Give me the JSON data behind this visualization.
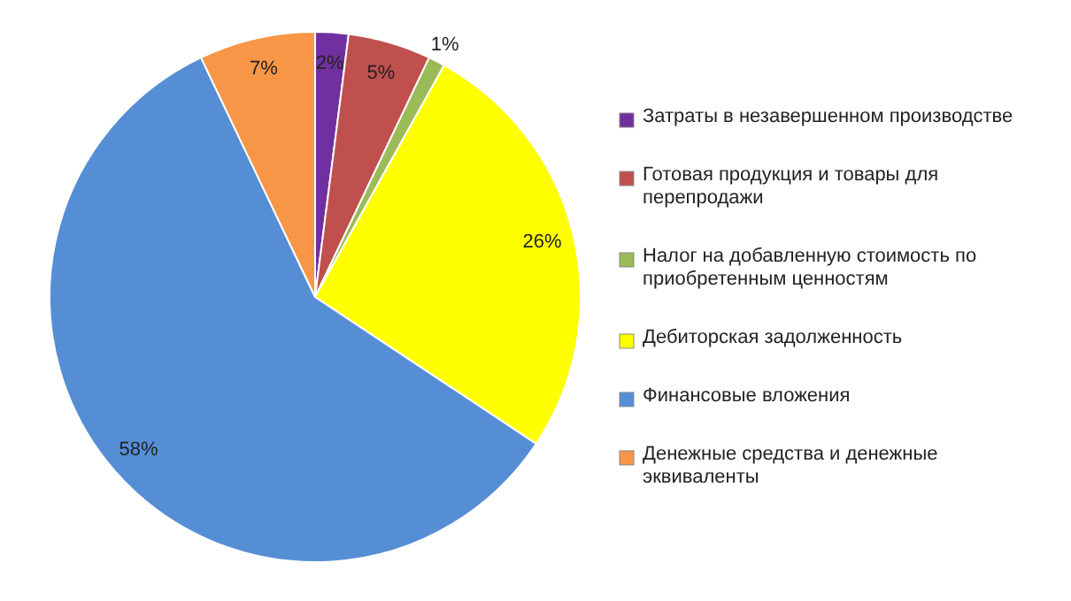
{
  "chart_data": {
    "type": "pie",
    "categories": [
      "Затраты в незавершенном производстве",
      "Готовая продукция и товары для перепродажи",
      "Налог на добавленную стоимость по приобретенным ценностям",
      "Дебиторская задолженность",
      "Финансовые вложения",
      "Денежные средства и денежные эквиваленты"
    ],
    "values": [
      2,
      5,
      1,
      26,
      58,
      7
    ],
    "colors": [
      "#7030a0",
      "#c0504d",
      "#9bbb59",
      "#ffff00",
      "#558ed5",
      "#f79646"
    ],
    "value_labels": [
      "2%",
      "5%",
      "1%",
      "26%",
      "58%",
      "7%"
    ],
    "legend": "right"
  }
}
